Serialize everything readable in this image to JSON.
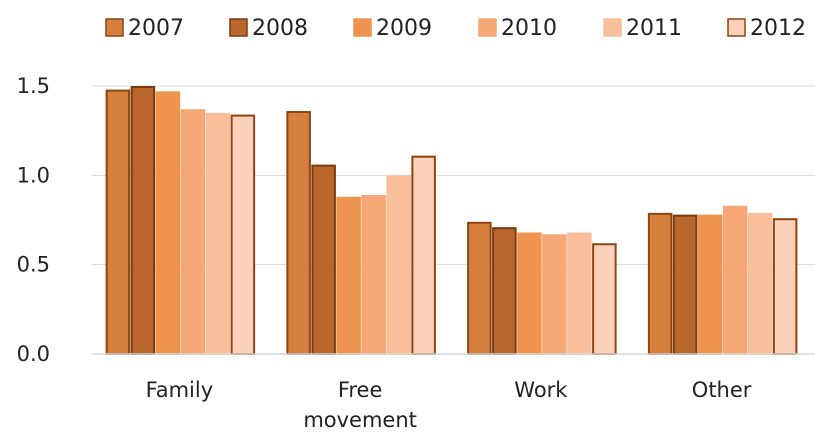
{
  "chart_data": {
    "type": "bar",
    "categories": [
      [
        "Family"
      ],
      [
        "Free",
        "movement"
      ],
      [
        "Work"
      ],
      [
        "Other"
      ]
    ],
    "series": [
      {
        "name": "2007",
        "values": [
          1.48,
          1.36,
          0.74,
          0.79
        ],
        "color": "#D5803E",
        "stroke": "#8C4510"
      },
      {
        "name": "2008",
        "values": [
          1.5,
          1.06,
          0.71,
          0.78
        ],
        "color": "#B8662C",
        "stroke": "#7A3A0E"
      },
      {
        "name": "2009",
        "values": [
          1.47,
          0.88,
          0.68,
          0.78
        ],
        "color": "#EE944E",
        "stroke": "#EE944E"
      },
      {
        "name": "2010",
        "values": [
          1.37,
          0.89,
          0.67,
          0.83
        ],
        "color": "#F5A775",
        "stroke": "#F5A775"
      },
      {
        "name": "2011",
        "values": [
          1.35,
          1.0,
          0.68,
          0.79
        ],
        "color": "#F8BF9A",
        "stroke": "#F8BF9A"
      },
      {
        "name": "2012",
        "values": [
          1.34,
          1.11,
          0.62,
          0.76
        ],
        "color": "#FAD2BC",
        "stroke": "#8C4510"
      }
    ],
    "y_ticks": [
      "0.0",
      "0.5",
      "1.0",
      "1.5"
    ],
    "ylim": [
      0,
      1.5
    ],
    "grid": true,
    "legend_position": "top"
  }
}
